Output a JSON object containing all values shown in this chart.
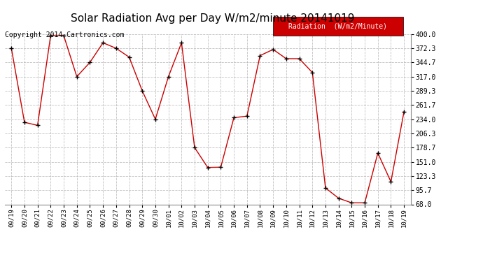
{
  "title": "Solar Radiation Avg per Day W/m2/minute 20141019",
  "copyright": "Copyright 2014 Cartronics.com",
  "legend_label": "Radiation  (W/m2/Minute)",
  "x_labels": [
    "09/19",
    "09/20",
    "09/21",
    "09/22",
    "09/23",
    "09/24",
    "09/25",
    "09/26",
    "09/27",
    "09/28",
    "09/29",
    "09/30",
    "10/01",
    "10/02",
    "10/03",
    "10/04",
    "10/05",
    "10/06",
    "10/07",
    "10/08",
    "10/09",
    "10/10",
    "10/11",
    "10/12",
    "10/13",
    "10/14",
    "10/15",
    "10/16",
    "10/17",
    "10/18",
    "10/19"
  ],
  "y_values": [
    372.3,
    228.0,
    222.0,
    397.0,
    397.0,
    317.0,
    344.7,
    383.0,
    372.3,
    355.0,
    289.3,
    234.0,
    317.0,
    383.0,
    178.7,
    140.0,
    140.5,
    237.0,
    240.0,
    358.0,
    370.0,
    352.0,
    352.0,
    325.0,
    100.0,
    80.0,
    71.0,
    71.0,
    168.0,
    112.0,
    249.0
  ],
  "y_ticks": [
    68.0,
    95.7,
    123.3,
    151.0,
    178.7,
    206.3,
    234.0,
    261.7,
    289.3,
    317.0,
    344.7,
    372.3,
    400.0
  ],
  "y_min": 68.0,
  "y_max": 400.0,
  "line_color": "#cc0000",
  "marker": "+",
  "marker_color": "black",
  "background_color": "#ffffff",
  "grid_color": "#b0b0b0",
  "title_fontsize": 11,
  "copyright_fontsize": 7,
  "legend_bg": "#cc0000",
  "legend_fg": "#ffffff",
  "legend_fontsize": 7
}
